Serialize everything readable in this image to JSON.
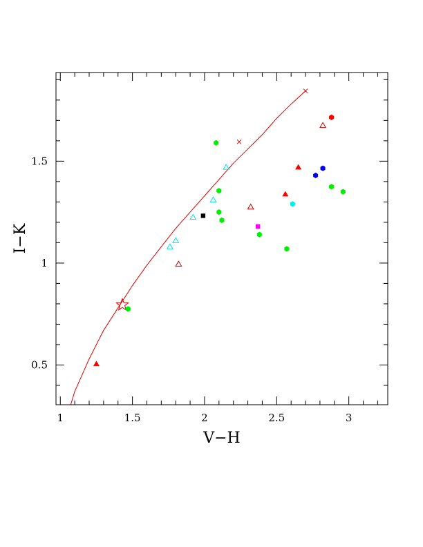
{
  "chart_data": {
    "type": "scatter",
    "title": "",
    "xlabel": "V−H",
    "ylabel": "I−K",
    "xlim": [
      0.97,
      3.27
    ],
    "ylim": [
      0.305,
      1.935
    ],
    "grid": false,
    "x_ticks": [
      {
        "value": 1,
        "label": "1"
      },
      {
        "value": 1.5,
        "label": "1.5"
      },
      {
        "value": 2,
        "label": "2"
      },
      {
        "value": 2.5,
        "label": "2.5"
      },
      {
        "value": 3,
        "label": "3"
      }
    ],
    "y_ticks": [
      {
        "value": 0.5,
        "label": "0.5"
      },
      {
        "value": 1,
        "label": "1"
      },
      {
        "value": 1.5,
        "label": "1.5"
      }
    ],
    "x_minor_step": 0.1,
    "y_minor_step": 0.1,
    "curve": {
      "color": "#dd0000",
      "points": [
        [
          1.07,
          0.3
        ],
        [
          1.1,
          0.37
        ],
        [
          1.15,
          0.45
        ],
        [
          1.2,
          0.53
        ],
        [
          1.3,
          0.67
        ],
        [
          1.4,
          0.78
        ],
        [
          1.5,
          0.89
        ],
        [
          1.6,
          0.99
        ],
        [
          1.7,
          1.08
        ],
        [
          1.8,
          1.17
        ],
        [
          1.9,
          1.25
        ],
        [
          2.0,
          1.33
        ],
        [
          2.1,
          1.41
        ],
        [
          2.2,
          1.49
        ],
        [
          2.3,
          1.56
        ],
        [
          2.4,
          1.63
        ],
        [
          2.5,
          1.71
        ],
        [
          2.6,
          1.78
        ],
        [
          2.7,
          1.845
        ]
      ],
      "crosses": [
        [
          2.24,
          1.595
        ],
        [
          2.7,
          1.845
        ]
      ],
      "star": [
        1.43,
        0.795
      ]
    },
    "points": [
      {
        "x": 1.25,
        "y": 0.505,
        "marker": "triangle-filled",
        "color": "#ff0000"
      },
      {
        "x": 1.47,
        "y": 0.775,
        "marker": "hexagon",
        "color": "#00ee00"
      },
      {
        "x": 1.76,
        "y": 1.08,
        "marker": "triangle-open",
        "color": "#00e5e5"
      },
      {
        "x": 1.8,
        "y": 1.11,
        "marker": "triangle-open",
        "color": "#00e5e5"
      },
      {
        "x": 1.82,
        "y": 0.995,
        "marker": "triangle-open",
        "color": "#cc0000"
      },
      {
        "x": 1.92,
        "y": 1.225,
        "marker": "triangle-open",
        "color": "#00e5e5"
      },
      {
        "x": 1.99,
        "y": 1.232,
        "marker": "square",
        "color": "#000000"
      },
      {
        "x": 2.06,
        "y": 1.31,
        "marker": "triangle-open",
        "color": "#00e5e5"
      },
      {
        "x": 2.08,
        "y": 1.59,
        "marker": "hexagon",
        "color": "#00ee00"
      },
      {
        "x": 2.1,
        "y": 1.355,
        "marker": "hexagon",
        "color": "#00ee00"
      },
      {
        "x": 2.1,
        "y": 1.25,
        "marker": "hexagon",
        "color": "#00ee00"
      },
      {
        "x": 2.12,
        "y": 1.21,
        "marker": "hexagon",
        "color": "#00ee00"
      },
      {
        "x": 2.15,
        "y": 1.47,
        "marker": "triangle-open",
        "color": "#00e5e5"
      },
      {
        "x": 2.32,
        "y": 1.275,
        "marker": "triangle-open",
        "color": "#cc0000"
      },
      {
        "x": 2.37,
        "y": 1.18,
        "marker": "square",
        "color": "#ff00ff"
      },
      {
        "x": 2.38,
        "y": 1.14,
        "marker": "hexagon",
        "color": "#00ee00"
      },
      {
        "x": 2.56,
        "y": 1.338,
        "marker": "triangle-filled",
        "color": "#ff0000"
      },
      {
        "x": 2.57,
        "y": 1.07,
        "marker": "hexagon",
        "color": "#00ee00"
      },
      {
        "x": 2.61,
        "y": 1.29,
        "marker": "hexagon",
        "color": "#00f0f0"
      },
      {
        "x": 2.65,
        "y": 1.47,
        "marker": "triangle-filled",
        "color": "#ff0000"
      },
      {
        "x": 2.77,
        "y": 1.43,
        "marker": "hexagon",
        "color": "#0000ee"
      },
      {
        "x": 2.82,
        "y": 1.465,
        "marker": "hexagon",
        "color": "#0000ee"
      },
      {
        "x": 2.82,
        "y": 1.675,
        "marker": "triangle-open",
        "color": "#cc0000"
      },
      {
        "x": 2.88,
        "y": 1.715,
        "marker": "hexagon",
        "color": "#ff0000"
      },
      {
        "x": 2.88,
        "y": 1.375,
        "marker": "hexagon",
        "color": "#00ee00"
      },
      {
        "x": 2.96,
        "y": 1.35,
        "marker": "hexagon",
        "color": "#00ee00"
      }
    ]
  }
}
